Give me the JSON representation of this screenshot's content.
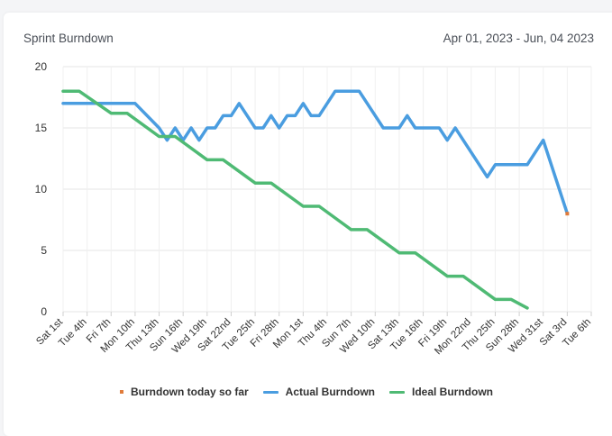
{
  "header": {
    "title": "Sprint Burndown",
    "date_range": "Apr 01, 2023 - Jun, 04 2023"
  },
  "colors": {
    "actual": "#4a9de0",
    "ideal": "#4fba74",
    "today": "#e07b3a",
    "grid": "#e6e6e6"
  },
  "chart_data": {
    "type": "line",
    "title": "Sprint Burndown",
    "xlabel": "",
    "ylabel": "",
    "ylim": [
      0,
      20
    ],
    "yticks": [
      0,
      5,
      10,
      15,
      20
    ],
    "grid": true,
    "legend_position": "bottom",
    "x_tick_labels": [
      "Sat 1st",
      "Tue 4th",
      "Fri 7th",
      "Mon 10th",
      "Thu 13th",
      "Sun 16th",
      "Wed 19th",
      "Sat 22nd",
      "Tue 25th",
      "Fri 28th",
      "Mon 1st",
      "Thu 4th",
      "Sun 7th",
      "Wed 10th",
      "Sat 13th",
      "Tue 16th",
      "Fri 19th",
      "Mon 22nd",
      "Thu 25th",
      "Sun 28th",
      "Wed 31st",
      "Sat 3rd",
      "Tue 6th"
    ],
    "x_range": [
      0,
      66
    ],
    "series": [
      {
        "name": "Burndown today so far",
        "color": "#e07b3a",
        "points": [
          [
            63,
            8
          ]
        ]
      },
      {
        "name": "Actual Burndown",
        "color": "#4a9de0",
        "points": [
          [
            0,
            17
          ],
          [
            9,
            17
          ],
          [
            12,
            15
          ],
          [
            13,
            14
          ],
          [
            14,
            15
          ],
          [
            15,
            14
          ],
          [
            16,
            15
          ],
          [
            17,
            14
          ],
          [
            18,
            15
          ],
          [
            19,
            15
          ],
          [
            20,
            16
          ],
          [
            21,
            16
          ],
          [
            22,
            17
          ],
          [
            24,
            15
          ],
          [
            25,
            15
          ],
          [
            26,
            16
          ],
          [
            27,
            15
          ],
          [
            28,
            16
          ],
          [
            29,
            16
          ],
          [
            30,
            17
          ],
          [
            31,
            16
          ],
          [
            32,
            16
          ],
          [
            34,
            18
          ],
          [
            37,
            18
          ],
          [
            40,
            15
          ],
          [
            42,
            15
          ],
          [
            43,
            16
          ],
          [
            44,
            15
          ],
          [
            47,
            15
          ],
          [
            48,
            14
          ],
          [
            49,
            15
          ],
          [
            53,
            11
          ],
          [
            54,
            12
          ],
          [
            58,
            12
          ],
          [
            60,
            14
          ],
          [
            63,
            8
          ]
        ]
      },
      {
        "name": "Ideal Burndown",
        "color": "#4fba74",
        "points": [
          [
            0,
            18
          ],
          [
            2,
            18
          ],
          [
            6,
            16.2
          ],
          [
            8,
            16.2
          ],
          [
            12,
            14.3
          ],
          [
            14,
            14.3
          ],
          [
            18,
            12.4
          ],
          [
            20,
            12.4
          ],
          [
            24,
            10.5
          ],
          [
            26,
            10.5
          ],
          [
            30,
            8.6
          ],
          [
            32,
            8.6
          ],
          [
            36,
            6.7
          ],
          [
            38,
            6.7
          ],
          [
            42,
            4.8
          ],
          [
            44,
            4.8
          ],
          [
            48,
            2.9
          ],
          [
            50,
            2.9
          ],
          [
            54,
            1
          ],
          [
            56,
            1
          ],
          [
            58,
            0.3
          ]
        ]
      }
    ]
  },
  "legend": {
    "items": [
      {
        "label": "Burndown today so far",
        "color": "#e07b3a",
        "shape": "square"
      },
      {
        "label": "Actual Burndown",
        "color": "#4a9de0",
        "shape": "line"
      },
      {
        "label": "Ideal Burndown",
        "color": "#4fba74",
        "shape": "line"
      }
    ]
  }
}
